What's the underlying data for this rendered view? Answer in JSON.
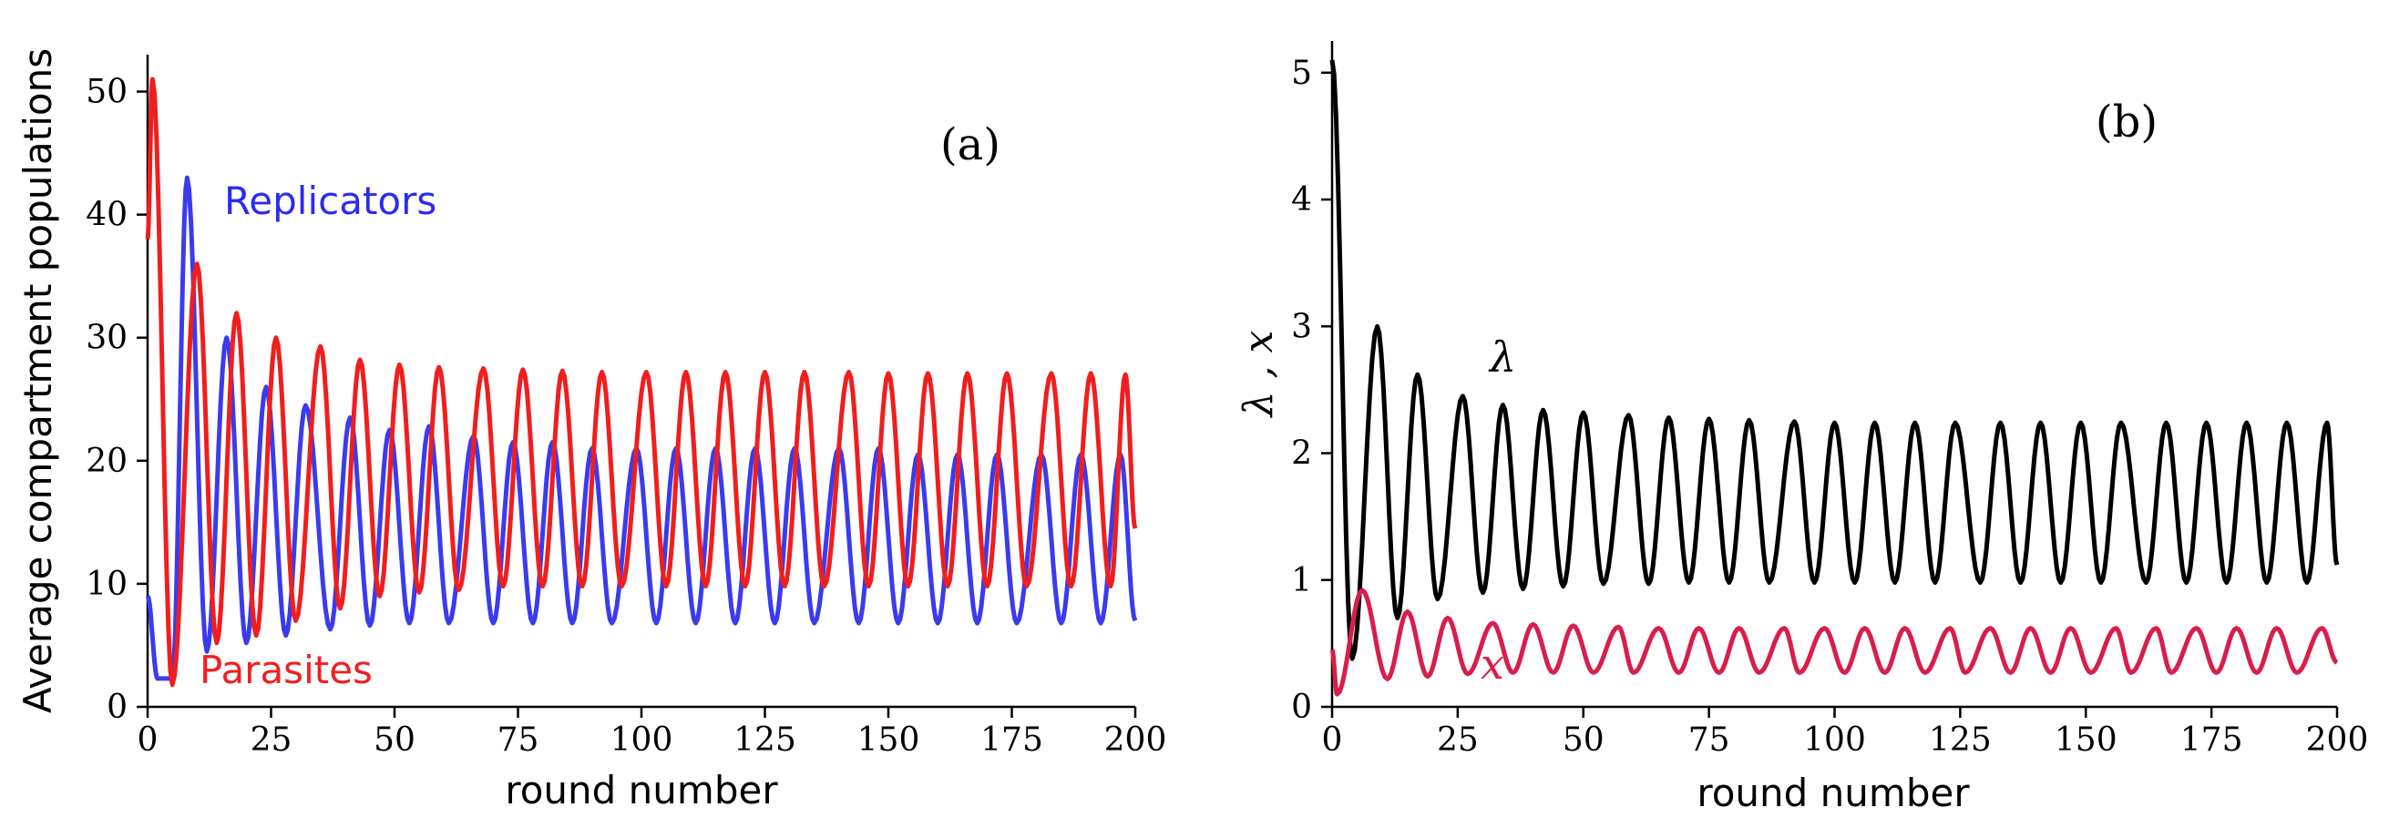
{
  "chart_data": [
    {
      "type": "line",
      "panel_label": "(a)",
      "xlabel": "round number",
      "ylabel": "Average compartment populations",
      "xlim": [
        0,
        200
      ],
      "ylim": [
        0,
        53
      ],
      "xticks": [
        0,
        25,
        50,
        75,
        100,
        125,
        150,
        175,
        200
      ],
      "yticks": [
        0,
        10,
        20,
        30,
        40,
        50
      ],
      "annotations": [
        {
          "text": "Replicators",
          "color": "#2b2bf0"
        },
        {
          "text": "Parasites",
          "color": "#f02020"
        }
      ],
      "series": [
        {
          "label": "Replicators",
          "color": "#3b3bee",
          "period": 8.2,
          "peaks": [
            [
              8,
              43
            ],
            [
              16,
              30
            ],
            [
              24,
              26
            ],
            [
              32,
              24.5
            ],
            [
              41,
              23.5
            ],
            [
              49,
              22.5
            ],
            [
              57,
              22.8
            ],
            [
              66,
              22
            ],
            [
              74,
              21.5
            ],
            [
              82,
              21.5
            ],
            [
              90,
              21
            ],
            [
              99,
              21
            ],
            [
              107,
              21
            ],
            [
              115,
              21
            ],
            [
              123,
              21
            ],
            [
              131,
              21
            ],
            [
              140,
              21
            ],
            [
              148,
              21
            ],
            [
              156,
              20.5
            ],
            [
              164,
              20.5
            ],
            [
              172,
              20.5
            ],
            [
              181,
              20.5
            ],
            [
              189,
              20.5
            ],
            [
              197,
              20.5
            ]
          ],
          "troughs": [
            [
              2,
              2.3
            ],
            [
              5,
              2.3
            ],
            [
              12,
              4.5
            ],
            [
              20,
              5.2
            ],
            [
              28,
              5.8
            ],
            [
              37,
              6.3
            ],
            [
              45,
              6.6
            ],
            [
              53,
              6.8
            ],
            [
              61,
              6.8
            ],
            [
              70,
              6.8
            ],
            [
              78,
              6.8
            ],
            [
              86,
              6.8
            ],
            [
              94,
              6.8
            ],
            [
              103,
              6.8
            ],
            [
              111,
              6.8
            ],
            [
              119,
              6.8
            ],
            [
              127,
              6.8
            ],
            [
              135,
              6.8
            ],
            [
              144,
              6.8
            ],
            [
              152,
              6.8
            ],
            [
              160,
              6.8
            ],
            [
              168,
              6.8
            ],
            [
              176,
              6.8
            ],
            [
              185,
              6.8
            ],
            [
              193,
              6.8
            ]
          ],
          "start": [
            0,
            9
          ],
          "end": [
            200,
            7
          ]
        },
        {
          "label": "Parasites",
          "color": "#f01e1e",
          "period": 8.2,
          "peaks": [
            [
              1,
              51
            ],
            [
              10,
              36
            ],
            [
              18,
              32
            ],
            [
              26,
              30
            ],
            [
              35,
              29.3
            ],
            [
              43,
              28.2
            ],
            [
              51,
              27.8
            ],
            [
              59,
              27.6
            ],
            [
              68,
              27.5
            ],
            [
              76,
              27.4
            ],
            [
              84,
              27.3
            ],
            [
              92,
              27.2
            ],
            [
              101,
              27.2
            ],
            [
              109,
              27.2
            ],
            [
              117,
              27.2
            ],
            [
              125,
              27.2
            ],
            [
              133,
              27.2
            ],
            [
              142,
              27.2
            ],
            [
              150,
              27.1
            ],
            [
              158,
              27.1
            ],
            [
              166,
              27.1
            ],
            [
              174,
              27.1
            ],
            [
              183,
              27.1
            ],
            [
              191,
              27.1
            ],
            [
              198,
              27
            ]
          ],
          "troughs": [
            [
              5,
              1.8
            ],
            [
              14,
              5.2
            ],
            [
              22,
              5.8
            ],
            [
              30,
              7.0
            ],
            [
              39,
              8.0
            ],
            [
              47,
              9.0
            ],
            [
              55,
              9.3
            ],
            [
              63,
              9.5
            ],
            [
              72,
              9.8
            ],
            [
              80,
              9.8
            ],
            [
              88,
              9.8
            ],
            [
              96,
              9.8
            ],
            [
              105,
              9.8
            ],
            [
              113,
              9.8
            ],
            [
              121,
              9.8
            ],
            [
              129,
              9.8
            ],
            [
              137,
              9.8
            ],
            [
              146,
              9.8
            ],
            [
              154,
              9.8
            ],
            [
              162,
              9.8
            ],
            [
              170,
              9.8
            ],
            [
              178,
              9.8
            ],
            [
              187,
              9.8
            ],
            [
              195,
              9.8
            ]
          ],
          "start": [
            0,
            38
          ],
          "end": [
            200,
            14.5
          ]
        }
      ]
    },
    {
      "type": "line",
      "panel_label": "(b)",
      "xlabel": "round number",
      "ylabel": "λ , x",
      "xlim": [
        0,
        200
      ],
      "ylim": [
        0,
        5.25
      ],
      "xticks": [
        0,
        25,
        50,
        75,
        100,
        125,
        150,
        175,
        200
      ],
      "yticks": [
        0,
        1,
        2,
        3,
        4,
        5
      ],
      "annotations": [
        {
          "text": "λ",
          "color": "#000000"
        },
        {
          "text": "x",
          "color": "#d81e4a"
        }
      ],
      "series": [
        {
          "label": "λ",
          "color": "#000000",
          "peaks": [
            [
              0,
              5.1
            ],
            [
              9,
              3.0
            ],
            [
              17,
              2.62
            ],
            [
              26,
              2.45
            ],
            [
              34,
              2.38
            ],
            [
              42,
              2.34
            ],
            [
              50,
              2.32
            ],
            [
              59,
              2.3
            ],
            [
              67,
              2.28
            ],
            [
              75,
              2.27
            ],
            [
              83,
              2.26
            ],
            [
              92,
              2.25
            ],
            [
              100,
              2.24
            ],
            [
              108,
              2.24
            ],
            [
              116,
              2.24
            ],
            [
              124,
              2.24
            ],
            [
              133,
              2.24
            ],
            [
              141,
              2.24
            ],
            [
              149,
              2.24
            ],
            [
              157,
              2.24
            ],
            [
              166,
              2.24
            ],
            [
              174,
              2.24
            ],
            [
              182,
              2.24
            ],
            [
              190,
              2.24
            ],
            [
              198,
              2.24
            ]
          ],
          "troughs": [
            [
              4,
              0.38
            ],
            [
              13,
              0.7
            ],
            [
              21,
              0.85
            ],
            [
              30,
              0.9
            ],
            [
              38,
              0.93
            ],
            [
              46,
              0.95
            ],
            [
              54,
              0.97
            ],
            [
              63,
              0.97
            ],
            [
              71,
              0.98
            ],
            [
              79,
              0.98
            ],
            [
              87,
              0.98
            ],
            [
              96,
              0.98
            ],
            [
              104,
              0.98
            ],
            [
              112,
              0.98
            ],
            [
              120,
              0.98
            ],
            [
              129,
              0.98
            ],
            [
              137,
              0.98
            ],
            [
              145,
              0.98
            ],
            [
              153,
              0.98
            ],
            [
              162,
              0.98
            ],
            [
              170,
              0.98
            ],
            [
              178,
              0.98
            ],
            [
              186,
              0.98
            ],
            [
              194,
              0.98
            ]
          ],
          "end": [
            200,
            1.12
          ]
        },
        {
          "label": "x",
          "color": "#d81e4a",
          "peaks": [
            [
              6,
              0.92
            ],
            [
              15,
              0.75
            ],
            [
              23,
              0.7
            ],
            [
              32,
              0.66
            ],
            [
              40,
              0.65
            ],
            [
              48,
              0.64
            ],
            [
              57,
              0.63
            ],
            [
              65,
              0.62
            ],
            [
              73,
              0.62
            ],
            [
              81,
              0.62
            ],
            [
              90,
              0.62
            ],
            [
              98,
              0.62
            ],
            [
              106,
              0.62
            ],
            [
              114,
              0.62
            ],
            [
              123,
              0.62
            ],
            [
              131,
              0.62
            ],
            [
              139,
              0.62
            ],
            [
              147,
              0.62
            ],
            [
              156,
              0.62
            ],
            [
              164,
              0.62
            ],
            [
              172,
              0.62
            ],
            [
              180,
              0.62
            ],
            [
              188,
              0.62
            ],
            [
              197,
              0.62
            ]
          ],
          "troughs": [
            [
              1,
              0.1
            ],
            [
              11,
              0.22
            ],
            [
              19,
              0.24
            ],
            [
              27,
              0.26
            ],
            [
              36,
              0.27
            ],
            [
              44,
              0.27
            ],
            [
              52,
              0.27
            ],
            [
              60,
              0.27
            ],
            [
              69,
              0.27
            ],
            [
              77,
              0.27
            ],
            [
              85,
              0.27
            ],
            [
              93,
              0.27
            ],
            [
              102,
              0.27
            ],
            [
              110,
              0.27
            ],
            [
              118,
              0.27
            ],
            [
              126,
              0.27
            ],
            [
              135,
              0.27
            ],
            [
              143,
              0.27
            ],
            [
              151,
              0.27
            ],
            [
              159,
              0.27
            ],
            [
              167,
              0.27
            ],
            [
              176,
              0.27
            ],
            [
              184,
              0.27
            ],
            [
              192,
              0.27
            ]
          ],
          "start": [
            0,
            0.45
          ],
          "end": [
            200,
            0.35
          ]
        }
      ]
    }
  ]
}
